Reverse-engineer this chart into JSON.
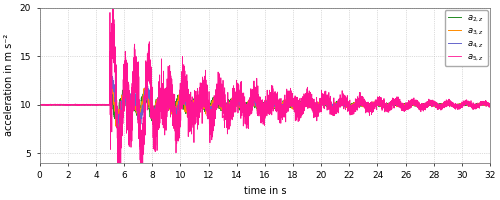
{
  "xlabel": "time in s",
  "ylabel": "acceleration in m s⁻²",
  "xlim": [
    0,
    32
  ],
  "ylim": [
    4,
    20
  ],
  "yticks": [
    5,
    10,
    15,
    20
  ],
  "xticks": [
    0,
    2,
    4,
    6,
    8,
    10,
    12,
    14,
    16,
    18,
    20,
    22,
    24,
    26,
    28,
    30,
    32
  ],
  "colors": {
    "a5z": "#FF1493",
    "a4z": "#6666CC",
    "a3z": "#FF8C00",
    "a2z": "#228B22"
  },
  "legend_labels": [
    "$a_{5,z}$",
    "$a_{4,z}$",
    "$a_{3,z}$",
    "$a_{2,z}$"
  ],
  "baseline": 10.0,
  "separation_time": 5.0,
  "dt": 0.005,
  "t_end": 32.0,
  "background_color": "#FFFFFF",
  "grid_color": "#BBBBBB"
}
